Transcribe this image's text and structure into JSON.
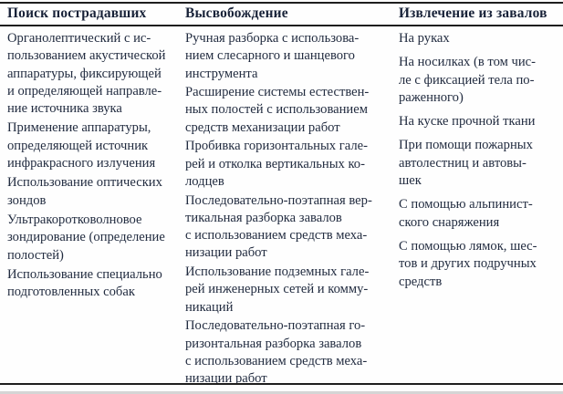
{
  "page": {
    "background_color": "#fefefe",
    "text_color": "#222c40",
    "rule_color": "#1e1e1e"
  },
  "table": {
    "columns": [
      {
        "header": "Поиск пострадавших",
        "paragraphs": [
          "Органолептический с ис-\nпользованием акустической\nаппаратуры, фиксирующей\nи определяющей направле-\nние источника звука",
          "Применение аппаратуры,\nопределяющей источник\nинфракрасного излучения",
          "Использование оптических\nзондов",
          "Ультракоротковолновое\nзондирование (определение\nполостей)",
          "Использование специально\nподготовленных собак"
        ]
      },
      {
        "header": "Высвобождение",
        "paragraphs": [
          "Ручная разборка с использова-\nнием слесарного и шанцевого\nинструмента",
          "Расширение системы естествен-\nных полостей с использованием\nсредств механизации работ",
          "Пробивка горизонтальных гале-\nрей и отколка вертикальных ко-\nлодцев",
          "Последовательно-поэтапная вер-\nтикальная разборка завалов\nс использованием средств меха-\nнизации работ",
          "Использование подземных гале-\nрей инженерных сетей и комму-\nникаций",
          "Последовательно-поэтапная го-\nризонтальная разборка завалов\nс использованием средств меха-\nнизации работ"
        ]
      },
      {
        "header": "Извлечение из завалов",
        "paragraphs": [
          "На руках",
          "На носилках (в том чис-\nле с фиксацией тела по-\nраженного)",
          "На куске прочной ткани",
          "При помощи пожарных\nавтолестниц и автовы-\nшек",
          "С помощью альпинист-\nского снаряжения",
          "С помощью лямок, шес-\nтов и других подручных\nсредств"
        ]
      }
    ]
  }
}
